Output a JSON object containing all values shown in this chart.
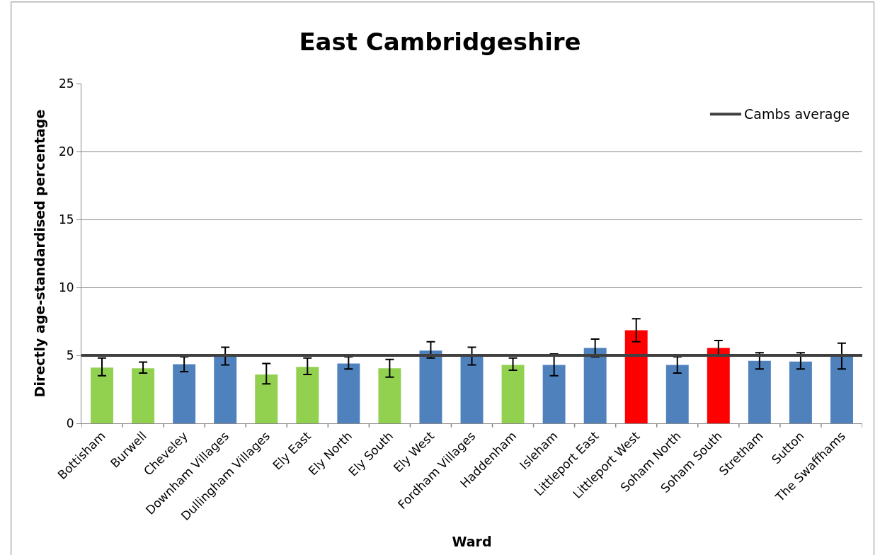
{
  "chart_data": {
    "type": "bar",
    "title": "East Cambridgeshire",
    "xlabel": "Ward",
    "ylabel": "Directly age-standardised percentage",
    "categories": [
      "Bottisham",
      "Burwell",
      "Cheveley",
      "Downham Villages",
      "Dullingham Villages",
      "Ely East",
      "Ely North",
      "Ely South",
      "Ely West",
      "Fordham Villages",
      "Haddenham",
      "Isleham",
      "Littleport East",
      "Littleport West",
      "Soham North",
      "Soham South",
      "Stretham",
      "Sutton",
      "The Swaffhams"
    ],
    "values": [
      4.1,
      4.05,
      4.35,
      4.95,
      3.6,
      4.15,
      4.4,
      4.05,
      5.35,
      4.95,
      4.3,
      4.3,
      5.55,
      6.85,
      4.3,
      5.55,
      4.6,
      4.55,
      4.95
    ],
    "colors": [
      "#92d050",
      "#92d050",
      "#4f81bd",
      "#4f81bd",
      "#92d050",
      "#92d050",
      "#4f81bd",
      "#92d050",
      "#4f81bd",
      "#4f81bd",
      "#92d050",
      "#4f81bd",
      "#4f81bd",
      "#ff0000",
      "#4f81bd",
      "#ff0000",
      "#4f81bd",
      "#4f81bd",
      "#4f81bd"
    ],
    "errors": [
      [
        3.5,
        4.8
      ],
      [
        3.7,
        4.5
      ],
      [
        3.8,
        4.9
      ],
      [
        4.3,
        5.6
      ],
      [
        2.9,
        4.4
      ],
      [
        3.6,
        4.8
      ],
      [
        4.0,
        4.9
      ],
      [
        3.4,
        4.7
      ],
      [
        4.8,
        6.0
      ],
      [
        4.3,
        5.6
      ],
      [
        3.9,
        4.8
      ],
      [
        3.5,
        5.1
      ],
      [
        4.9,
        6.2
      ],
      [
        6.0,
        7.7
      ],
      [
        3.7,
        4.9
      ],
      [
        5.0,
        6.1
      ],
      [
        4.0,
        5.2
      ],
      [
        4.0,
        5.2
      ],
      [
        4.0,
        5.9
      ]
    ],
    "ylim": [
      0,
      25
    ],
    "yticks": [
      0,
      5,
      10,
      15,
      20,
      25
    ],
    "grid": "y",
    "ref_lines": [
      {
        "axis": "y",
        "value": 5,
        "label": "Cambs average",
        "color": "#404040"
      }
    ]
  }
}
